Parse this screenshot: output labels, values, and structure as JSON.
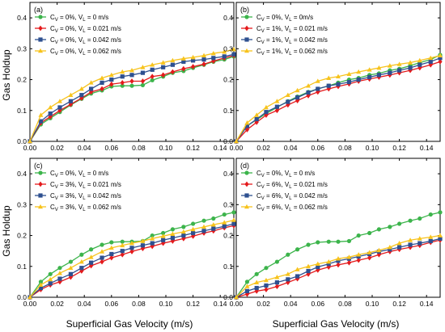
{
  "figure": {
    "ylabel": "Gas Holdup",
    "xlabel": "Superficial Gas Velocity (m/s)"
  },
  "chart_data": [
    {
      "type": "line",
      "panel": "(a)",
      "xlim": [
        0,
        0.15
      ],
      "ylim": [
        0,
        0.45
      ],
      "xticks": [
        "0.00",
        "0.02",
        "0.04",
        "0.06",
        "0.08",
        "0.10",
        "0.12",
        "0.14"
      ],
      "yticks": [
        "0.0",
        "0.1",
        "0.2",
        "0.3",
        "0.4"
      ],
      "legend_position": "top-left",
      "x": [
        0,
        0.008,
        0.015,
        0.022,
        0.03,
        0.038,
        0.045,
        0.053,
        0.06,
        0.068,
        0.075,
        0.083,
        0.09,
        0.098,
        0.105,
        0.113,
        0.12,
        0.128,
        0.135,
        0.143,
        0.15
      ],
      "series": [
        {
          "label_parts": [
            "C",
            "V",
            " = 0%, V",
            "L",
            " = 0 m/s"
          ],
          "color": "#3cb44b",
          "marker": "circle",
          "values": [
            0,
            0.055,
            0.075,
            0.095,
            0.118,
            0.138,
            0.155,
            0.165,
            0.178,
            0.18,
            0.18,
            0.182,
            0.198,
            0.21,
            0.222,
            0.228,
            0.238,
            0.248,
            0.258,
            0.265,
            0.275
          ]
        },
        {
          "label_parts": [
            "C",
            "V",
            " = 0%, V",
            "L",
            " = 0.021 m/s"
          ],
          "color": "#e41a1c",
          "marker": "diamond",
          "values": [
            0,
            0.06,
            0.08,
            0.1,
            0.12,
            0.14,
            0.16,
            0.17,
            0.185,
            0.19,
            0.195,
            0.195,
            0.21,
            0.215,
            0.225,
            0.235,
            0.242,
            0.25,
            0.26,
            0.27,
            0.278
          ]
        },
        {
          "label_parts": [
            "C",
            "V",
            " = 0%, V",
            "L",
            " = 0.042 m/s"
          ],
          "color": "#2e5090",
          "marker": "square",
          "values": [
            0,
            0.065,
            0.09,
            0.11,
            0.13,
            0.15,
            0.17,
            0.19,
            0.2,
            0.21,
            0.215,
            0.222,
            0.232,
            0.24,
            0.248,
            0.258,
            0.262,
            0.265,
            0.27,
            0.275,
            0.282
          ]
        },
        {
          "label_parts": [
            "C",
            "V",
            " = 0%, V",
            "L",
            " = 0.062 m/s"
          ],
          "color": "#f7c31c",
          "marker": "triangle",
          "values": [
            0,
            0.085,
            0.11,
            0.13,
            0.15,
            0.17,
            0.19,
            0.205,
            0.215,
            0.225,
            0.23,
            0.24,
            0.248,
            0.255,
            0.262,
            0.268,
            0.272,
            0.278,
            0.285,
            0.29,
            0.298
          ]
        }
      ]
    },
    {
      "type": "line",
      "panel": "(b)",
      "xlim": [
        0,
        0.15
      ],
      "ylim": [
        0,
        0.45
      ],
      "xticks": [
        "0.00",
        "0.02",
        "0.04",
        "0.06",
        "0.08",
        "0.10",
        "0.12",
        "0.14"
      ],
      "yticks": [
        "0.0",
        "0.1",
        "0.2",
        "0.3",
        "0.4"
      ],
      "legend_position": "top-left",
      "x": [
        0,
        0.008,
        0.015,
        0.022,
        0.03,
        0.038,
        0.045,
        0.053,
        0.06,
        0.068,
        0.075,
        0.083,
        0.09,
        0.098,
        0.105,
        0.113,
        0.12,
        0.128,
        0.135,
        0.143,
        0.15
      ],
      "series": [
        {
          "label_parts": [
            "C",
            "V",
            " = 0%, V",
            "L",
            " = 0m/s"
          ],
          "color": "#3cb44b",
          "marker": "circle",
          "values": [
            0,
            0.05,
            0.07,
            0.09,
            0.11,
            0.13,
            0.145,
            0.16,
            0.17,
            0.18,
            0.19,
            0.2,
            0.205,
            0.215,
            0.22,
            0.23,
            0.235,
            0.245,
            0.255,
            0.265,
            0.28
          ]
        },
        {
          "label_parts": [
            "C",
            "V",
            " = 1%, V",
            "L",
            " = 0.021 m/s"
          ],
          "color": "#e41a1c",
          "marker": "diamond",
          "values": [
            0,
            0.038,
            0.062,
            0.085,
            0.1,
            0.118,
            0.132,
            0.148,
            0.16,
            0.17,
            0.178,
            0.186,
            0.195,
            0.202,
            0.208,
            0.215,
            0.222,
            0.23,
            0.238,
            0.248,
            0.258
          ]
        },
        {
          "label_parts": [
            "C",
            "V",
            " = 1%, V",
            "L",
            " = 0.042 m/s"
          ],
          "color": "#2e5090",
          "marker": "square",
          "values": [
            0,
            0.05,
            0.072,
            0.095,
            0.112,
            0.128,
            0.142,
            0.158,
            0.17,
            0.18,
            0.185,
            0.192,
            0.2,
            0.208,
            0.215,
            0.222,
            0.23,
            0.238,
            0.248,
            0.258,
            0.27
          ]
        },
        {
          "label_parts": [
            "C",
            "V",
            " = 1%, V",
            "L",
            " = 0.062 m/s"
          ],
          "color": "#f7c31c",
          "marker": "triangle",
          "values": [
            0,
            0.06,
            0.085,
            0.11,
            0.13,
            0.15,
            0.165,
            0.18,
            0.195,
            0.205,
            0.21,
            0.218,
            0.225,
            0.232,
            0.238,
            0.245,
            0.25,
            0.255,
            0.262,
            0.27,
            0.278
          ]
        }
      ]
    },
    {
      "type": "line",
      "panel": "(c)",
      "xlim": [
        0,
        0.15
      ],
      "ylim": [
        0,
        0.45
      ],
      "xticks": [
        "0.00",
        "0.02",
        "0.04",
        "0.06",
        "0.08",
        "0.10",
        "0.12",
        "0.14"
      ],
      "yticks": [
        "0.0",
        "0.1",
        "0.2",
        "0.3",
        "0.4"
      ],
      "legend_position": "top-left",
      "x": [
        0,
        0.008,
        0.015,
        0.022,
        0.03,
        0.038,
        0.045,
        0.053,
        0.06,
        0.068,
        0.075,
        0.083,
        0.09,
        0.098,
        0.105,
        0.113,
        0.12,
        0.128,
        0.135,
        0.143,
        0.15
      ],
      "series": [
        {
          "label_parts": [
            "C",
            "V",
            " = 0%, V",
            "L",
            " = 0 m/s"
          ],
          "color": "#3cb44b",
          "marker": "circle",
          "values": [
            0,
            0.05,
            0.075,
            0.095,
            0.115,
            0.138,
            0.155,
            0.17,
            0.178,
            0.18,
            0.18,
            0.182,
            0.2,
            0.208,
            0.22,
            0.228,
            0.238,
            0.248,
            0.255,
            0.268,
            0.275
          ]
        },
        {
          "label_parts": [
            "C",
            "V",
            " = 3%, V",
            "L",
            " = 0.021 m/s"
          ],
          "color": "#e41a1c",
          "marker": "diamond",
          "values": [
            0,
            0.025,
            0.04,
            0.05,
            0.065,
            0.085,
            0.102,
            0.115,
            0.128,
            0.138,
            0.148,
            0.158,
            0.165,
            0.175,
            0.182,
            0.19,
            0.198,
            0.208,
            0.215,
            0.225,
            0.232
          ]
        },
        {
          "label_parts": [
            "C",
            "V",
            " = 3%, V",
            "L",
            " = 0.042 m/s"
          ],
          "color": "#2e5090",
          "marker": "square",
          "values": [
            0,
            0.03,
            0.045,
            0.06,
            0.075,
            0.095,
            0.112,
            0.128,
            0.14,
            0.15,
            0.16,
            0.168,
            0.175,
            0.185,
            0.192,
            0.2,
            0.208,
            0.215,
            0.222,
            0.23,
            0.238
          ]
        },
        {
          "label_parts": [
            "C",
            "V",
            " = 3%, V",
            "L",
            " = 0.062 m/s"
          ],
          "color": "#f7c31c",
          "marker": "triangle",
          "values": [
            0,
            0.04,
            0.058,
            0.078,
            0.095,
            0.115,
            0.13,
            0.148,
            0.16,
            0.168,
            0.175,
            0.182,
            0.19,
            0.198,
            0.205,
            0.212,
            0.22,
            0.228,
            0.235,
            0.242,
            0.25
          ]
        }
      ]
    },
    {
      "type": "line",
      "panel": "(d)",
      "xlim": [
        0,
        0.15
      ],
      "ylim": [
        0,
        0.45
      ],
      "xticks": [
        "0.00",
        "0.02",
        "0.04",
        "0.06",
        "0.08",
        "0.10",
        "0.12",
        "0.14"
      ],
      "yticks": [
        "0.0",
        "0.1",
        "0.2",
        "0.3",
        "0.4"
      ],
      "legend_position": "top-left",
      "x": [
        0,
        0.008,
        0.015,
        0.022,
        0.03,
        0.038,
        0.045,
        0.053,
        0.06,
        0.068,
        0.075,
        0.083,
        0.09,
        0.098,
        0.105,
        0.113,
        0.12,
        0.128,
        0.135,
        0.143,
        0.15
      ],
      "series": [
        {
          "label_parts": [
            "C",
            "V",
            " = 0%, V",
            "L",
            " = 0 m/s"
          ],
          "color": "#3cb44b",
          "marker": "circle",
          "values": [
            0,
            0.05,
            0.075,
            0.095,
            0.115,
            0.138,
            0.155,
            0.17,
            0.178,
            0.18,
            0.18,
            0.182,
            0.2,
            0.208,
            0.22,
            0.228,
            0.238,
            0.248,
            0.255,
            0.268,
            0.275
          ]
        },
        {
          "label_parts": [
            "C",
            "V",
            " = 6%, V",
            "L",
            " = 0.021 m/s"
          ],
          "color": "#e41a1c",
          "marker": "diamond",
          "values": [
            0,
            0.01,
            0.02,
            0.025,
            0.035,
            0.048,
            0.06,
            0.075,
            0.088,
            0.098,
            0.105,
            0.112,
            0.12,
            0.128,
            0.138,
            0.148,
            0.155,
            0.162,
            0.168,
            0.178,
            0.185
          ]
        },
        {
          "label_parts": [
            "C",
            "V",
            " = 6%, V",
            "L",
            " = 0.042 m/s"
          ],
          "color": "#2e5090",
          "marker": "square",
          "values": [
            0,
            0.02,
            0.03,
            0.038,
            0.048,
            0.058,
            0.068,
            0.085,
            0.098,
            0.108,
            0.118,
            0.125,
            0.132,
            0.14,
            0.148,
            0.155,
            0.162,
            0.17,
            0.175,
            0.182,
            0.19
          ]
        },
        {
          "label_parts": [
            "C",
            "V",
            " = 6%, V",
            "L",
            " = 0.062 m/s"
          ],
          "color": "#f7c31c",
          "marker": "triangle",
          "values": [
            0,
            0.035,
            0.048,
            0.055,
            0.065,
            0.075,
            0.09,
            0.1,
            0.108,
            0.115,
            0.125,
            0.13,
            0.138,
            0.145,
            0.152,
            0.162,
            0.175,
            0.185,
            0.19,
            0.195,
            0.2
          ]
        }
      ]
    }
  ]
}
